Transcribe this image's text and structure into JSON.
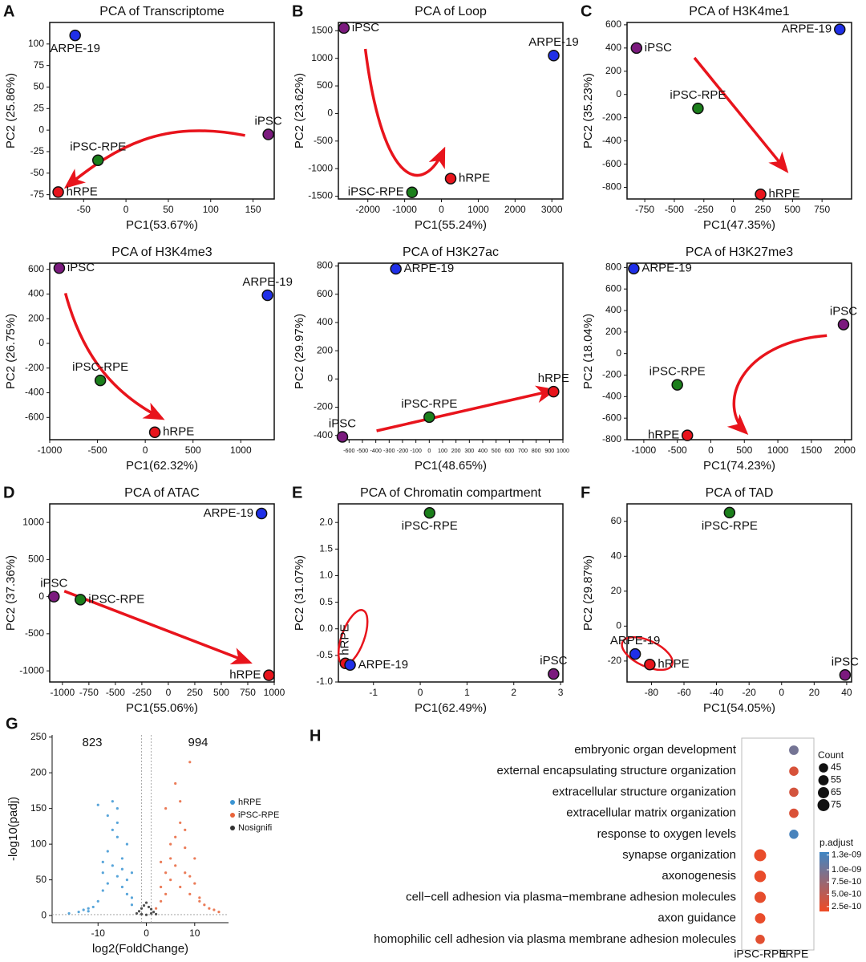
{
  "chart_data": [
    {
      "type": "scatter",
      "panel": "A",
      "title": "PCA of Transcriptome",
      "xlabel": "PC1(53.67%)",
      "ylabel": "PC2 (25.86%)",
      "frame": true,
      "xlim": [
        -90,
        175
      ],
      "xticks": [
        -50,
        0,
        50,
        100,
        150
      ],
      "ylim": [
        -80,
        125
      ],
      "yticks": [
        -75,
        -50,
        -25,
        0,
        25,
        50,
        75,
        100
      ],
      "series": [
        {
          "name": "iPSC",
          "color": "#7b1a7e",
          "x": [
            168
          ],
          "values": [
            -5
          ]
        },
        {
          "name": "iPSC-RPE",
          "color": "#1b7f1b",
          "x": [
            -33
          ],
          "values": [
            -35
          ]
        },
        {
          "name": "hRPE",
          "color": "#e8141c",
          "x": [
            -80
          ],
          "values": [
            -72
          ]
        },
        {
          "name": "ARPE-19",
          "color": "#1f2fe8",
          "x": [
            -60
          ],
          "values": [
            110
          ]
        }
      ]
    },
    {
      "type": "scatter",
      "panel": "B",
      "title": "PCA of Loop",
      "xlabel": "PC1(55.24%)",
      "ylabel": "PC2 (23.62%)",
      "frame": true,
      "xlim": [
        -2800,
        3300
      ],
      "xticks": [
        -2000,
        -1000,
        0,
        1000,
        2000,
        3000
      ],
      "ylim": [
        -1550,
        1650
      ],
      "yticks": [
        -1500,
        -1000,
        -500,
        0,
        500,
        1000,
        1500
      ],
      "series": [
        {
          "name": "iPSC",
          "color": "#7b1a7e",
          "x": [
            -2650
          ],
          "values": [
            1550
          ]
        },
        {
          "name": "iPSC-RPE",
          "color": "#1b7f1b",
          "x": [
            -800
          ],
          "values": [
            -1430
          ]
        },
        {
          "name": "hRPE",
          "color": "#e8141c",
          "x": [
            250
          ],
          "values": [
            -1180
          ]
        },
        {
          "name": "ARPE-19",
          "color": "#1f2fe8",
          "x": [
            3050
          ],
          "values": [
            1050
          ]
        }
      ]
    },
    {
      "type": "scatter",
      "panel": "C",
      "title": "PCA of H3K4me1",
      "xlabel": "PC1(47.35%)",
      "ylabel": "PC2 (35.23%)",
      "frame": true,
      "xlim": [
        -900,
        1000
      ],
      "xticks": [
        -750,
        -500,
        -250,
        0,
        250,
        500,
        750
      ],
      "ylim": [
        -900,
        620
      ],
      "yticks": [
        -800,
        -600,
        -400,
        -200,
        0,
        200,
        400,
        600
      ],
      "series": [
        {
          "name": "iPSC",
          "color": "#7b1a7e",
          "x": [
            -820
          ],
          "values": [
            400
          ]
        },
        {
          "name": "iPSC-RPE",
          "color": "#1b7f1b",
          "x": [
            -300
          ],
          "values": [
            -120
          ]
        },
        {
          "name": "hRPE",
          "color": "#e8141c",
          "x": [
            230
          ],
          "values": [
            -860
          ]
        },
        {
          "name": "ARPE-19",
          "color": "#1f2fe8",
          "x": [
            900
          ],
          "values": [
            560
          ]
        }
      ]
    },
    {
      "type": "scatter",
      "title": "PCA of H3K4me3",
      "xlabel": "PC1(62.32%)",
      "ylabel": "PC2 (26.75%)",
      "frame": true,
      "xlim": [
        -1000,
        1350
      ],
      "xticks": [
        -1000,
        -500,
        0,
        500,
        1000
      ],
      "ylim": [
        -780,
        650
      ],
      "yticks": [
        -600,
        -400,
        -200,
        0,
        200,
        400,
        600
      ],
      "series": [
        {
          "name": "iPSC",
          "color": "#7b1a7e",
          "x": [
            -900
          ],
          "values": [
            610
          ]
        },
        {
          "name": "iPSC-RPE",
          "color": "#1b7f1b",
          "x": [
            -470
          ],
          "values": [
            -300
          ]
        },
        {
          "name": "hRPE",
          "color": "#e8141c",
          "x": [
            100
          ],
          "values": [
            -720
          ]
        },
        {
          "name": "ARPE-19",
          "color": "#1f2fe8",
          "x": [
            1280
          ],
          "values": [
            390
          ]
        }
      ]
    },
    {
      "type": "scatter",
      "title": "PCA of H3K27ac",
      "xlabel": "PC1(48.65%)",
      "ylabel": "PC2 (29.97%)",
      "frame": true,
      "xlim": [
        -680,
        1000
      ],
      "xticks": [
        -600,
        -500,
        -400,
        -300,
        -200,
        -100,
        0,
        100,
        200,
        300,
        400,
        500,
        600,
        700,
        800,
        900,
        1000
      ],
      "ylim": [
        -430,
        820
      ],
      "yticks": [
        -400,
        -200,
        0,
        200,
        400,
        600,
        800
      ],
      "series": [
        {
          "name": "iPSC",
          "color": "#7b1a7e",
          "x": [
            -650
          ],
          "values": [
            -410
          ]
        },
        {
          "name": "iPSC-RPE",
          "color": "#1b7f1b",
          "x": [
            0
          ],
          "values": [
            -270
          ]
        },
        {
          "name": "hRPE",
          "color": "#e8141c",
          "x": [
            930
          ],
          "values": [
            -90
          ]
        },
        {
          "name": "ARPE-19",
          "color": "#1f2fe8",
          "x": [
            -250
          ],
          "values": [
            780
          ]
        }
      ]
    },
    {
      "type": "scatter",
      "title": "PCA of H3K27me3",
      "xlabel": "PC1(74.23%)",
      "ylabel": "PC2 (18.04%)",
      "frame": true,
      "xlim": [
        -1250,
        2100
      ],
      "xticks": [
        -1000,
        -500,
        0,
        500,
        1000,
        1500,
        2000
      ],
      "ylim": [
        -800,
        840
      ],
      "yticks": [
        -800,
        -600,
        -400,
        -200,
        0,
        200,
        400,
        600,
        800
      ],
      "series": [
        {
          "name": "iPSC",
          "color": "#7b1a7e",
          "x": [
            1980
          ],
          "values": [
            270
          ]
        },
        {
          "name": "iPSC-RPE",
          "color": "#1b7f1b",
          "x": [
            -500
          ],
          "values": [
            -290
          ]
        },
        {
          "name": "hRPE",
          "color": "#e8141c",
          "x": [
            -350
          ],
          "values": [
            -760
          ]
        },
        {
          "name": "ARPE-19",
          "color": "#1f2fe8",
          "x": [
            -1150
          ],
          "values": [
            790
          ]
        }
      ]
    },
    {
      "type": "scatter",
      "panel": "D",
      "title": "PCA of ATAC",
      "xlabel": "PC1(55.06%)",
      "ylabel": "PC2 (37.36%)",
      "frame": true,
      "xlim": [
        -1120,
        1000
      ],
      "xticks": [
        -1000,
        -750,
        -500,
        -250,
        0,
        250,
        500,
        750,
        1000
      ],
      "ylim": [
        -1150,
        1250
      ],
      "yticks": [
        -1000,
        -500,
        0,
        500,
        1000
      ],
      "series": [
        {
          "name": "iPSC",
          "color": "#7b1a7e",
          "x": [
            -1080
          ],
          "values": [
            0
          ]
        },
        {
          "name": "iPSC-RPE",
          "color": "#1b7f1b",
          "x": [
            -830
          ],
          "values": [
            -40
          ]
        },
        {
          "name": "hRPE",
          "color": "#e8141c",
          "x": [
            950
          ],
          "values": [
            -1060
          ]
        },
        {
          "name": "ARPE-19",
          "color": "#1f2fe8",
          "x": [
            880
          ],
          "values": [
            1120
          ]
        }
      ]
    },
    {
      "type": "scatter",
      "panel": "E",
      "title": "PCA of Chromatin compartment",
      "xlabel": "PC1(62.49%)",
      "ylabel": "PC2 (31.07%)",
      "frame": true,
      "xlim": [
        -1.75,
        3.05
      ],
      "xticks": [
        -1,
        0,
        1,
        2,
        3
      ],
      "ylim": [
        -1.0,
        2.35
      ],
      "yticks": [
        {
          "value": -1,
          "label": "-1.0"
        },
        -0.5,
        {
          "value": 0,
          "label": "0.0"
        },
        0.5,
        {
          "value": 1,
          "label": "1.0"
        },
        1.5,
        {
          "value": 2,
          "label": "2.0"
        }
      ],
      "series": [
        {
          "name": "iPSC",
          "color": "#7b1a7e",
          "x": [
            2.85
          ],
          "values": [
            -0.85
          ]
        },
        {
          "name": "iPSC-RPE",
          "color": "#1b7f1b",
          "x": [
            0.2
          ],
          "values": [
            2.18
          ]
        },
        {
          "name": "hRPE",
          "color": "#e8141c",
          "x": [
            -1.6
          ],
          "values": [
            -0.65
          ]
        },
        {
          "name": "ARPE-19",
          "color": "#1f2fe8",
          "x": [
            -1.5
          ],
          "values": [
            -0.68
          ]
        }
      ]
    },
    {
      "type": "scatter",
      "panel": "F",
      "title": "PCA of TAD",
      "xlabel": "PC1(54.05%)",
      "ylabel": "PC2 (29.87%)",
      "frame": true,
      "xlim": [
        -95,
        43
      ],
      "xticks": [
        -80,
        -60,
        -40,
        -20,
        0,
        20,
        40
      ],
      "ylim": [
        -32,
        70
      ],
      "yticks": [
        -20,
        0,
        20,
        40,
        60
      ],
      "series": [
        {
          "name": "iPSC",
          "color": "#7b1a7e",
          "x": [
            39
          ],
          "values": [
            -28
          ]
        },
        {
          "name": "iPSC-RPE",
          "color": "#1b7f1b",
          "x": [
            -32
          ],
          "values": [
            65
          ]
        },
        {
          "name": "hRPE",
          "color": "#e8141c",
          "x": [
            -81
          ],
          "values": [
            -22
          ]
        },
        {
          "name": "ARPE-19",
          "color": "#1f2fe8",
          "x": [
            -90
          ],
          "values": [
            -16
          ]
        }
      ]
    },
    {
      "type": "scatter",
      "panel": "G",
      "xlabel": "log2(FoldChange)",
      "ylabel": "-log10(padj)",
      "frame": false,
      "legend": "right",
      "annotations": [
        "823",
        "994"
      ],
      "vlines": [
        -1,
        1
      ],
      "hlines": [
        1.3
      ],
      "xlim": [
        -19.5,
        17
      ],
      "xticks": [
        -10,
        0,
        10
      ],
      "ylim": [
        -10,
        253
      ],
      "yticks": [
        0,
        50,
        100,
        150,
        200,
        250
      ],
      "series": [
        {
          "name": "hRPE",
          "color": "#3b95d3",
          "x": [
            -16,
            -14,
            -13,
            -12,
            -11,
            -10,
            -9,
            -9,
            -8,
            -8,
            -7,
            -7,
            -6,
            -6,
            -5,
            -5,
            -4,
            -4,
            -3,
            -3,
            -10,
            -8,
            -6,
            -5,
            -4,
            -12,
            -7,
            -3,
            -6,
            -9
          ],
          "values": [
            3,
            5,
            8,
            10,
            12,
            20,
            35,
            60,
            45,
            90,
            70,
            120,
            55,
            150,
            80,
            40,
            100,
            30,
            25,
            15,
            155,
            140,
            110,
            65,
            50,
            6,
            160,
            60,
            130,
            75
          ]
        },
        {
          "name": "iPSC-RPE",
          "color": "#e8643a",
          "x": [
            2,
            3,
            3,
            4,
            4,
            5,
            5,
            6,
            6,
            7,
            7,
            8,
            8,
            9,
            9,
            10,
            11,
            12,
            13,
            15,
            4,
            6,
            8,
            10,
            5,
            3,
            7,
            9,
            11,
            14
          ],
          "values": [
            10,
            20,
            40,
            60,
            30,
            80,
            50,
            110,
            70,
            130,
            40,
            95,
            60,
            215,
            30,
            45,
            20,
            15,
            10,
            5,
            150,
            185,
            120,
            80,
            100,
            75,
            160,
            55,
            25,
            8
          ]
        },
        {
          "name": "Nosignifi",
          "color": "#333333",
          "x": [
            -2,
            -1.5,
            -1,
            -0.5,
            0,
            0.5,
            1,
            1.5,
            2,
            -1,
            1,
            0
          ],
          "values": [
            3,
            6,
            10,
            14,
            18,
            12,
            9,
            5,
            2,
            2,
            3,
            1
          ]
        }
      ]
    },
    {
      "type": "dot",
      "panel": "H",
      "categories": [
        "embryonic organ development",
        "external encapsulating structure organization",
        "extracellular structure organization",
        "extracellular matrix organization",
        "response to oxygen levels",
        "synapse organization",
        "axonogenesis",
        "cell−cell adhesion via plasma−membrane adhesion molecules",
        "axon guidance",
        "homophilic cell adhesion via plasma membrane adhesion molecules"
      ],
      "groups": [
        "iPSC-RPE",
        "hRPE"
      ],
      "group": [
        "hRPE",
        "hRPE",
        "hRPE",
        "hRPE",
        "hRPE",
        "iPSC-RPE",
        "iPSC-RPE",
        "iPSC-RPE",
        "iPSC-RPE",
        "iPSC-RPE"
      ],
      "counts": [
        47,
        45,
        45,
        46,
        44,
        75,
        70,
        66,
        56,
        45
      ],
      "padj": [
        1e-09,
        3.2e-10,
        3.5e-10,
        3e-10,
        1.3e-09,
        2e-10,
        2e-10,
        2.2e-10,
        2e-10,
        2.5e-10
      ],
      "size_title": "Count",
      "size_ticks": [
        45,
        55,
        65,
        75
      ],
      "color_title": "p.adjust",
      "clim": [
        1.5e-10,
        1.36e-09
      ],
      "cticks": [
        {
          "value": 1.3e-09,
          "label": "1.3e-09"
        },
        {
          "value": 1e-09,
          "label": "1.0e-09"
        },
        {
          "value": 7.5e-10,
          "label": "7.5e-10"
        },
        {
          "value": 5e-10,
          "label": "5.0e-10"
        },
        {
          "value": 2.5e-10,
          "label": "2.5e-10"
        }
      ],
      "color_low": "#f04a24",
      "color_high": "#3f86c4"
    }
  ]
}
